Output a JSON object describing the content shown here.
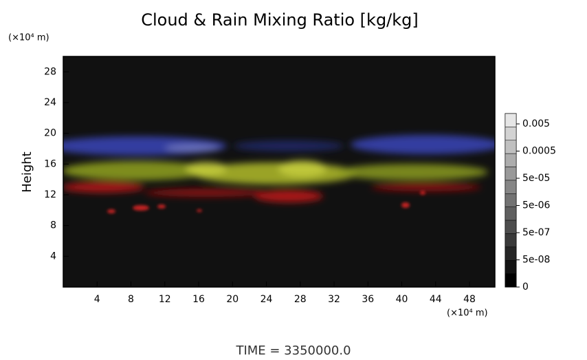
{
  "chart_data": {
    "type": "image",
    "title": "Cloud & Rain Mixing Ratio [kg/kg]",
    "y_unit": "(×10⁴ m)",
    "ylabel": "Height",
    "x_unit": "(×10⁴ m)",
    "footer": "TIME = 3350000.0",
    "xlim": [
      0,
      51
    ],
    "xticks": [
      4,
      8,
      12,
      16,
      20,
      24,
      28,
      32,
      36,
      40,
      44,
      48
    ],
    "ylim": [
      0,
      30
    ],
    "yticks": [
      4,
      8,
      12,
      16,
      20,
      24,
      28
    ],
    "colorbar_ticks": [
      0.005,
      0.0005,
      {
        "value": 5e-05,
        "label": "5e-05"
      },
      {
        "value": 5e-06,
        "label": "5e-06"
      },
      {
        "value": 5e-07,
        "label": "5e-07"
      },
      {
        "value": 5e-08,
        "label": "5e-08"
      },
      0
    ]
  }
}
